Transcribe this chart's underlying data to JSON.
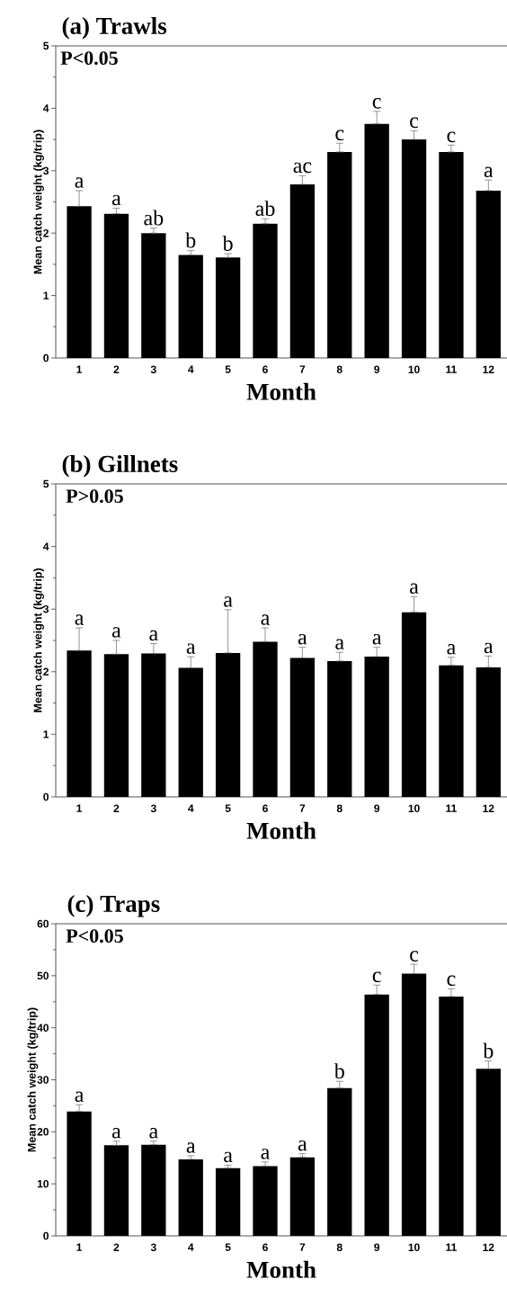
{
  "chart_data": [
    {
      "type": "bar",
      "title": "(a) Trawls",
      "xlabel": "Month",
      "ylabel": "Mean catch weight (kg/trip)",
      "categories": [
        "1",
        "2",
        "3",
        "4",
        "5",
        "6",
        "7",
        "8",
        "9",
        "10",
        "11",
        "12"
      ],
      "color": "#000000",
      "values": [
        2.43,
        2.31,
        2.0,
        1.65,
        1.61,
        2.15,
        2.78,
        3.3,
        3.75,
        3.5,
        3.3,
        2.68
      ],
      "errors": [
        [
          2.43,
          2.68
        ],
        [
          2.31,
          2.4
        ],
        [
          2.0,
          2.08
        ],
        [
          1.65,
          1.72
        ],
        [
          1.61,
          1.67
        ],
        [
          2.15,
          2.23
        ],
        [
          2.78,
          2.92
        ],
        [
          3.3,
          3.44
        ],
        [
          3.75,
          3.95
        ],
        [
          3.5,
          3.64
        ],
        [
          3.3,
          3.41
        ],
        [
          2.68,
          2.85
        ]
      ],
      "ylim": [
        0,
        5
      ],
      "yticks": [
        0,
        1,
        2,
        3,
        4,
        5
      ],
      "annotations": [
        "P<0.05",
        {
          "text": "a",
          "x": "1",
          "y": 2.68
        },
        {
          "text": "a",
          "x": "2",
          "y": 2.4
        },
        {
          "text": "ab",
          "x": "3",
          "y": 2.08
        },
        {
          "text": "b",
          "x": "4",
          "y": 1.72
        },
        {
          "text": "b",
          "x": "5",
          "y": 1.67
        },
        {
          "text": "ab",
          "x": "6",
          "y": 2.23
        },
        {
          "text": "ac",
          "x": "7",
          "y": 2.92
        },
        {
          "text": "c",
          "x": "8",
          "y": 3.44
        },
        {
          "text": "c",
          "x": "9",
          "y": 3.95
        },
        {
          "text": "c",
          "x": "10",
          "y": 3.64
        },
        {
          "text": "c",
          "x": "11",
          "y": 3.41
        },
        {
          "text": "a",
          "x": "12",
          "y": 2.85
        }
      ]
    },
    {
      "type": "bar",
      "title": "(b) Gillnets",
      "xlabel": "Month",
      "ylabel": "Mean catch weight (kg/trip)",
      "categories": [
        "1",
        "2",
        "3",
        "4",
        "5",
        "6",
        "7",
        "8",
        "9",
        "10",
        "11",
        "12"
      ],
      "color": "#000000",
      "values": [
        2.34,
        2.28,
        2.29,
        2.06,
        2.3,
        2.48,
        2.22,
        2.17,
        2.24,
        2.95,
        2.1,
        2.07
      ],
      "errors": [
        [
          2.34,
          2.7
        ],
        [
          2.28,
          2.5
        ],
        [
          2.29,
          2.45
        ],
        [
          2.06,
          2.24
        ],
        [
          2.3,
          2.99
        ],
        [
          2.48,
          2.7
        ],
        [
          2.22,
          2.39
        ],
        [
          2.17,
          2.31
        ],
        [
          2.24,
          2.39
        ],
        [
          2.95,
          3.2
        ],
        [
          2.1,
          2.23
        ],
        [
          2.07,
          2.25
        ]
      ],
      "ylim": [
        0,
        5
      ],
      "yticks": [
        0,
        1,
        2,
        3,
        4,
        5
      ],
      "annotations": [
        "P>0.05",
        {
          "text": "a",
          "x": "1",
          "y": 2.7
        },
        {
          "text": "a",
          "x": "2",
          "y": 2.5
        },
        {
          "text": "a",
          "x": "3",
          "y": 2.45
        },
        {
          "text": "a",
          "x": "4",
          "y": 2.24
        },
        {
          "text": "a",
          "x": "5",
          "y": 2.99
        },
        {
          "text": "a",
          "x": "6",
          "y": 2.7
        },
        {
          "text": "a",
          "x": "7",
          "y": 2.39
        },
        {
          "text": "a",
          "x": "8",
          "y": 2.31
        },
        {
          "text": "a",
          "x": "9",
          "y": 2.39
        },
        {
          "text": "a",
          "x": "10",
          "y": 3.2
        },
        {
          "text": "a",
          "x": "11",
          "y": 2.23
        },
        {
          "text": "a",
          "x": "12",
          "y": 2.25
        }
      ]
    },
    {
      "type": "bar",
      "title": "(c) Traps",
      "xlabel": "Month",
      "ylabel": "Mean catch weight (kg/trip)",
      "categories": [
        "1",
        "2",
        "3",
        "4",
        "5",
        "6",
        "7",
        "8",
        "9",
        "10",
        "11",
        "12"
      ],
      "color": "#000000",
      "values": [
        23.9,
        17.4,
        17.5,
        14.7,
        13.0,
        13.4,
        15.1,
        28.4,
        46.4,
        50.4,
        46.0,
        32.1
      ],
      "errors": [
        [
          23.9,
          25.2
        ],
        [
          17.4,
          18.2
        ],
        [
          17.5,
          18.2
        ],
        [
          14.7,
          15.4
        ],
        [
          13.0,
          13.6
        ],
        [
          13.4,
          14.2
        ],
        [
          15.1,
          15.8
        ],
        [
          28.4,
          29.7
        ],
        [
          46.4,
          48.2
        ],
        [
          50.4,
          52.2
        ],
        [
          46.0,
          47.5
        ],
        [
          32.1,
          33.6
        ]
      ],
      "ylim": [
        0,
        60
      ],
      "yticks": [
        0,
        10,
        20,
        30,
        40,
        50,
        60
      ],
      "annotations": [
        "P<0.05",
        {
          "text": "a",
          "x": "1",
          "y": 25.2
        },
        {
          "text": "a",
          "x": "2",
          "y": 18.2
        },
        {
          "text": "a",
          "x": "3",
          "y": 18.2
        },
        {
          "text": "a",
          "x": "4",
          "y": 15.4
        },
        {
          "text": "a",
          "x": "5",
          "y": 13.6
        },
        {
          "text": "a",
          "x": "6",
          "y": 14.2
        },
        {
          "text": "a",
          "x": "7",
          "y": 15.8
        },
        {
          "text": "b",
          "x": "8",
          "y": 29.7
        },
        {
          "text": "c",
          "x": "9",
          "y": 48.2
        },
        {
          "text": "c",
          "x": "10",
          "y": 52.2
        },
        {
          "text": "c",
          "x": "11",
          "y": 47.5
        },
        {
          "text": "b",
          "x": "12",
          "y": 33.6
        }
      ]
    }
  ]
}
